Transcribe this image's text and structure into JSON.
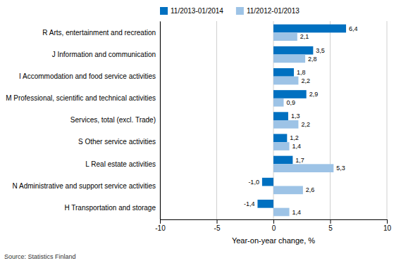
{
  "chart_data": {
    "type": "bar",
    "orientation": "horizontal",
    "categories": [
      "R Arts, entertainment and recreation",
      "J Information and communication",
      "I Accommodation and food service activities",
      "M Professional, scientific and technical activities",
      "Services, total (excl. Trade)",
      "S Other service activities",
      "L Real estate activities",
      "N Administrative and support service activities",
      "H Transportation and storage"
    ],
    "series": [
      {
        "name": "11/2013-01/2014",
        "color": "#0070C0",
        "values": [
          6.4,
          3.5,
          1.8,
          2.9,
          1.3,
          1.2,
          1.7,
          -1.0,
          -1.4
        ],
        "value_labels": [
          "6,4",
          "3,5",
          "1,8",
          "2,9",
          "1,3",
          "1,2",
          "1,7",
          "-1,0",
          "-1,4"
        ]
      },
      {
        "name": "11/2012-01/2013",
        "color": "#9DC3E6",
        "values": [
          2.1,
          2.8,
          2.2,
          0.9,
          2.2,
          1.4,
          5.3,
          2.6,
          1.4
        ],
        "value_labels": [
          "2,1",
          "2,8",
          "2,2",
          "0,9",
          "2,2",
          "1,4",
          "5,3",
          "2,6",
          "1,4"
        ]
      }
    ],
    "xlabel": "Year-on-year change, %",
    "xlim": [
      -10,
      10
    ],
    "xticks": [
      -10,
      -5,
      0,
      5,
      10
    ],
    "grid": true,
    "legend": "top",
    "data_labels": true,
    "annotations": [
      "Source: Statistics Finland"
    ]
  }
}
